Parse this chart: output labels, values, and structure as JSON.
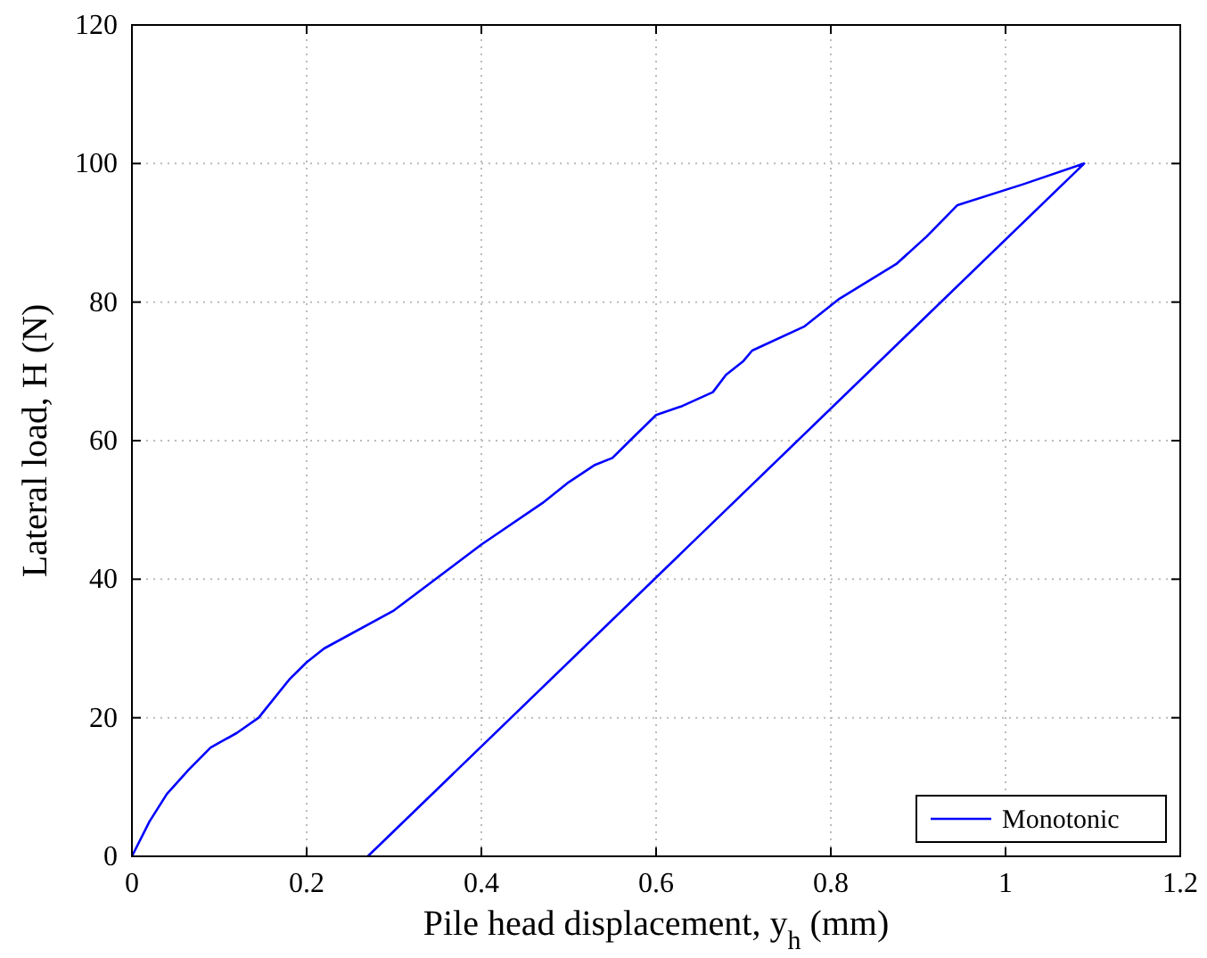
{
  "chart_data": {
    "type": "line",
    "xlabel": "Pile head displacement, y$_{h}$ (mm)",
    "ylabel": "Lateral load, H (N)",
    "xlim": [
      0,
      1.2
    ],
    "xticks": [
      0,
      0.2,
      0.4,
      0.6,
      0.8,
      1,
      1.2
    ],
    "ylim": [
      0,
      120
    ],
    "yticks": [
      0,
      20,
      40,
      60,
      80,
      100,
      120
    ],
    "grid": true,
    "legend": "bottom right",
    "line_style": "solid",
    "series": [
      {
        "name": "Monotonic",
        "color": "#0000ff",
        "x": [
          0,
          0.02,
          0.04,
          0.065,
          0.09,
          0.12,
          0.145,
          0.18,
          0.2,
          0.22,
          0.3,
          0.4,
          0.47,
          0.5,
          0.53,
          0.55,
          0.57,
          0.6,
          0.63,
          0.665,
          0.68,
          0.7,
          0.71,
          0.77,
          0.81,
          0.875,
          0.91,
          0.945,
          1.02,
          1.09,
          0.27
        ],
        "values": [
          0,
          5,
          9,
          12.5,
          15.7,
          17.8,
          20,
          25.5,
          28,
          30,
          35.5,
          45,
          51,
          54,
          56.5,
          57.5,
          60,
          63.7,
          65,
          67,
          69.5,
          71.5,
          73,
          76.5,
          80.5,
          85.5,
          89.5,
          94,
          97,
          100,
          0
        ]
      }
    ]
  }
}
